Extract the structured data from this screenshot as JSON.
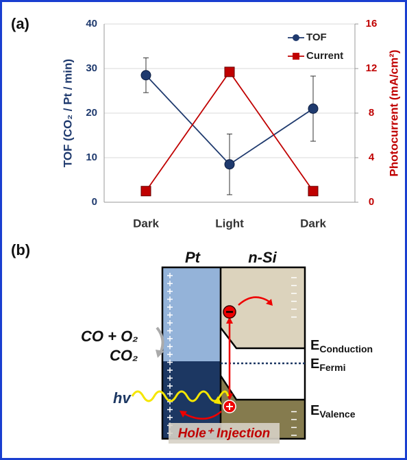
{
  "chart_data": {
    "type": "line",
    "panel_label": "(a)",
    "categories": [
      "Dark",
      "Light",
      "Dark"
    ],
    "y_label": "TOF (CO₂ / Pt / min)",
    "y2_label": "Photocurrent (mA/cm²)",
    "ylim": [
      0,
      40
    ],
    "yticks": [
      0,
      10,
      20,
      30,
      40
    ],
    "y2lim": [
      0,
      16
    ],
    "y2ticks": [
      0,
      4,
      8,
      12,
      16
    ],
    "grid": true,
    "legend": "upper right",
    "series": [
      {
        "name": "TOF",
        "color": "#1f3a6e",
        "marker": "circle",
        "values": [
          28.5,
          8.5,
          21
        ],
        "errors": [
          3.9,
          6.8,
          7.3
        ]
      },
      {
        "name": "Current",
        "color": "#c00000",
        "marker": "square",
        "axis": "y2",
        "values": [
          1,
          11.7,
          1
        ]
      }
    ]
  },
  "diagram": {
    "panel_label": "(b)",
    "pt": "Pt",
    "si": "n-Si",
    "reactants": "CO + O₂",
    "product": "CO₂",
    "photon": "hv",
    "conduction": {
      "main": "E",
      "sub": "Conduction"
    },
    "fermi": {
      "main": "E",
      "sub": "Fermi"
    },
    "valence": {
      "main": "E",
      "sub": "Valence"
    },
    "injection": "Hole⁺ Injection"
  }
}
